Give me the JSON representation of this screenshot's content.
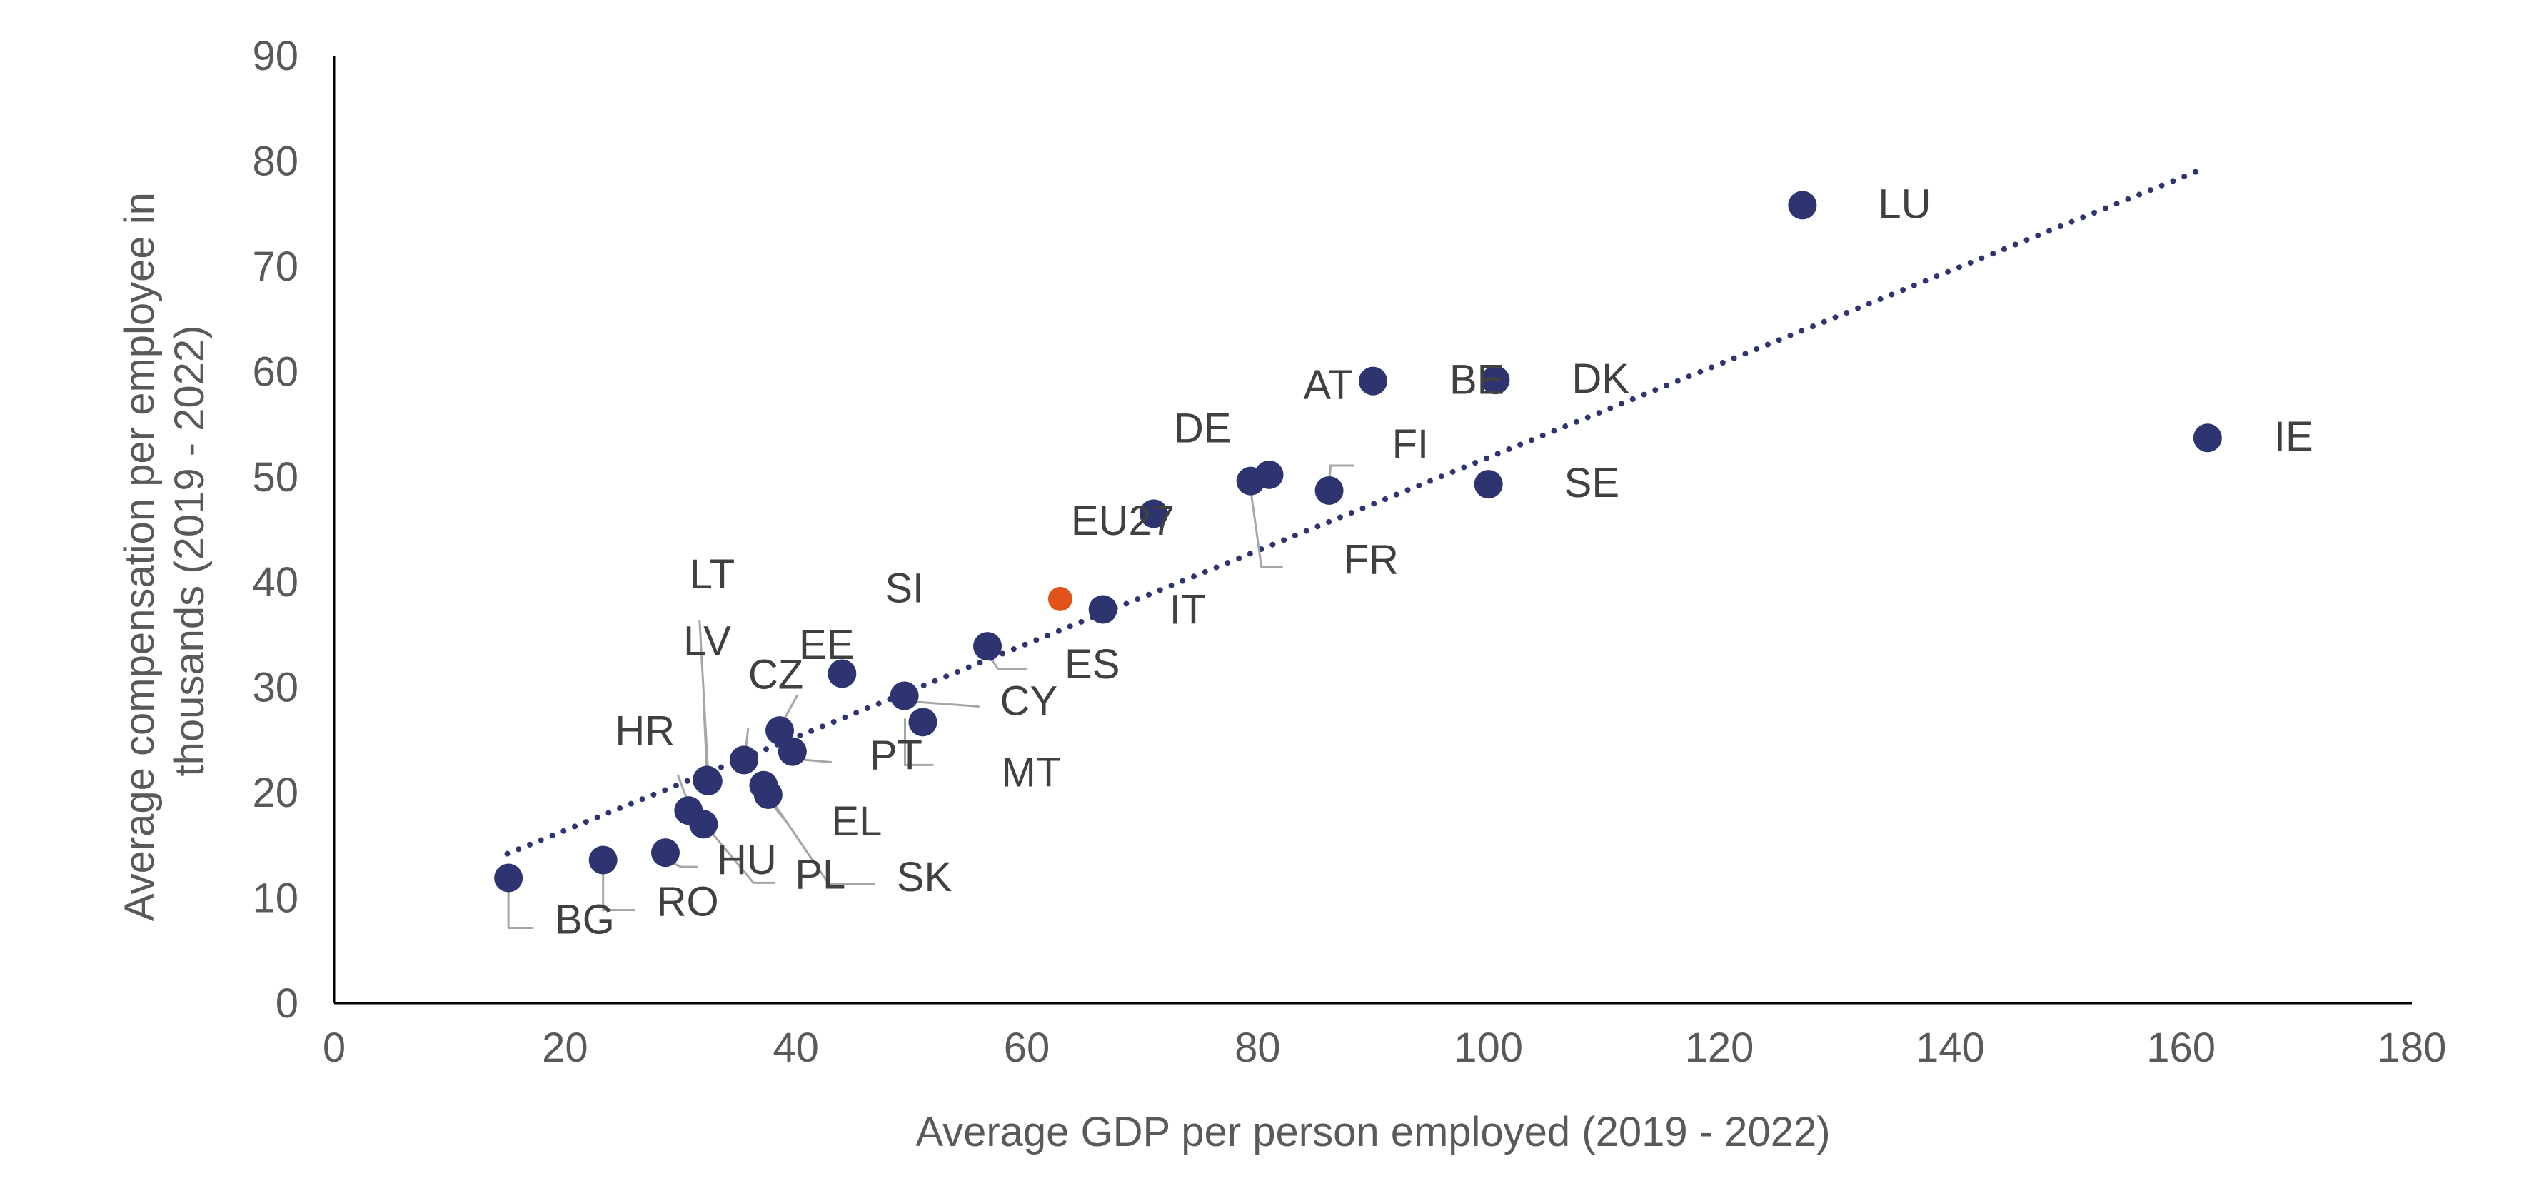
{
  "chart_data": {
    "type": "scatter",
    "title": "",
    "xlabel": "Average GDP per person employed (2019 - 2022)",
    "ylabel_lines": [
      "Average compensation per employee in",
      "thousands (2019 - 2022)"
    ],
    "xlim": [
      0,
      180
    ],
    "ylim": [
      0,
      90
    ],
    "x_ticks": [
      0,
      20,
      40,
      60,
      80,
      100,
      120,
      140,
      160,
      180
    ],
    "y_ticks": [
      0,
      10,
      20,
      30,
      40,
      50,
      60,
      70,
      80,
      90
    ],
    "grid": false,
    "legend": "none",
    "colors": {
      "series": "#2e3470",
      "highlight": "#e0541c",
      "leader": "#a6a6a6",
      "axis": "#000000"
    },
    "trendline": {
      "type": "linear",
      "style": "dotted",
      "x": [
        15,
        162
      ],
      "y": [
        14.2,
        79.3
      ]
    },
    "points": [
      {
        "label": "BG",
        "x": 15.1,
        "y": 11.9
      },
      {
        "label": "RO",
        "x": 23.3,
        "y": 13.6
      },
      {
        "label": "HU",
        "x": 28.7,
        "y": 14.3
      },
      {
        "label": "PL",
        "x": 32.0,
        "y": 17.0
      },
      {
        "label": "HR",
        "x": 30.7,
        "y": 18.3
      },
      {
        "label": "LV",
        "x": 32.3,
        "y": 21.2
      },
      {
        "label": "LT",
        "x": 32.4,
        "y": 21.1
      },
      {
        "label": "CZ",
        "x": 35.5,
        "y": 23.1
      },
      {
        "label": "EL",
        "x": 37.2,
        "y": 20.7
      },
      {
        "label": "SK",
        "x": 37.6,
        "y": 19.8
      },
      {
        "label": "EE",
        "x": 38.6,
        "y": 25.9
      },
      {
        "label": "PT",
        "x": 39.7,
        "y": 23.9
      },
      {
        "label": "SI",
        "x": 44.0,
        "y": 31.3
      },
      {
        "label": "CY",
        "x": 49.4,
        "y": 29.2
      },
      {
        "label": "MT",
        "x": 51.0,
        "y": 26.7
      },
      {
        "label": "ES",
        "x": 56.6,
        "y": 33.9
      },
      {
        "label": "EU27",
        "x": 62.9,
        "y": 38.4,
        "highlight": true
      },
      {
        "label": "IT",
        "x": 66.6,
        "y": 37.4
      },
      {
        "label": "DE",
        "x": 71.0,
        "y": 46.5
      },
      {
        "label": "FR",
        "x": 79.4,
        "y": 49.6
      },
      {
        "label": "AT",
        "x": 81.0,
        "y": 50.2
      },
      {
        "label": "FI",
        "x": 86.2,
        "y": 48.7
      },
      {
        "label": "BE",
        "x": 90.0,
        "y": 59.1
      },
      {
        "label": "SE",
        "x": 100.0,
        "y": 49.3
      },
      {
        "label": "DK",
        "x": 100.6,
        "y": 59.2
      },
      {
        "label": "LU",
        "x": 127.2,
        "y": 75.8
      },
      {
        "label": "IE",
        "x": 162.3,
        "y": 53.7
      }
    ]
  }
}
